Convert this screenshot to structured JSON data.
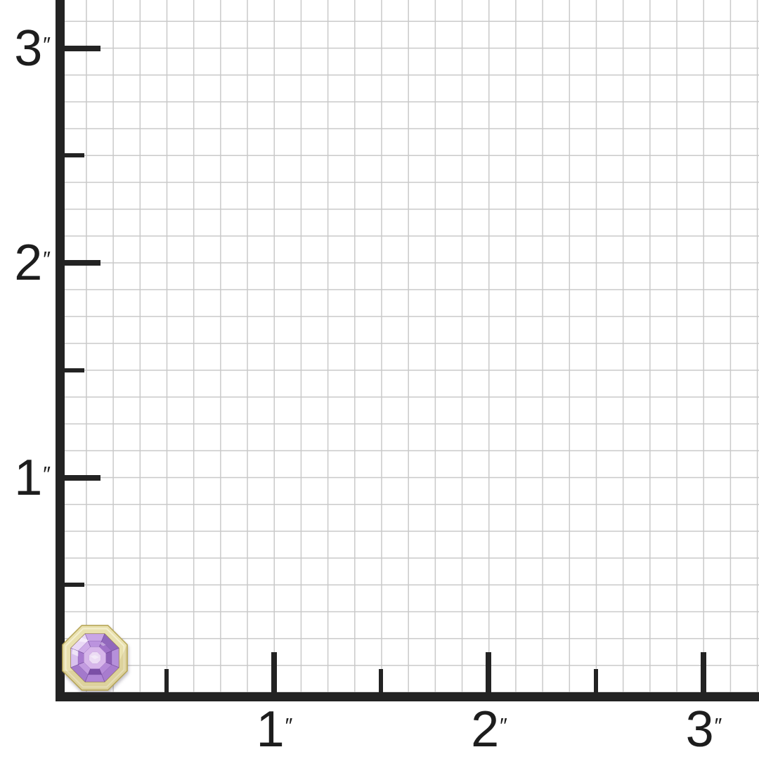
{
  "figure": {
    "description": "Product size-reference image: gemstone stud shown on an inch-ruler graph grid",
    "background": "#ffffff",
    "grid_line_color": "#c9c9c9",
    "axis_color": "#232323",
    "label_color": "#1d1d1d",
    "minor_square_inches": 0.125
  },
  "ruler": {
    "unit_name": "inches",
    "unit_mark": "″",
    "x_axis": {
      "major_ticks": [
        {
          "inches": 1,
          "label": "1"
        },
        {
          "inches": 2,
          "label": "2"
        },
        {
          "inches": 3,
          "label": "3"
        }
      ],
      "minor_ticks": [
        0.5,
        1.5,
        2.5
      ]
    },
    "y_axis": {
      "major_ticks": [
        {
          "inches": 1,
          "label": "1"
        },
        {
          "inches": 2,
          "label": "2"
        },
        {
          "inches": 3,
          "label": "3"
        }
      ],
      "minor_ticks": [
        0.5,
        1.5,
        2.5
      ]
    }
  },
  "product": {
    "name": "Octagonal asscher-cut amethyst stud in yellow-gold bezel",
    "approx_width_inches": 0.31,
    "approx_height_inches": 0.3,
    "position": "bottom-left corner at ruler origin",
    "colors": {
      "bezel_gold": "#e9e1af",
      "bezel_gold_light": "#f6f1d6",
      "bezel_gold_dark": "#b9a85a",
      "gem_outline": "#8a5fb2",
      "gem_center": "#d7b6ea",
      "gem_center_core": "#ecdcf4"
    },
    "facet_ring1": [
      "#c9a6e6",
      "#9168bc",
      "#b690da",
      "#a87cce",
      "#b187d6",
      "#a379cb",
      "#d9c2ee",
      "#ead9f6"
    ],
    "facet_ring2": [
      "#bb93de",
      "#a072c8",
      "#8d60b6",
      "#b58ad8",
      "#7b4fa6",
      "#c29be0",
      "#a87acf",
      "#cfade8"
    ]
  }
}
